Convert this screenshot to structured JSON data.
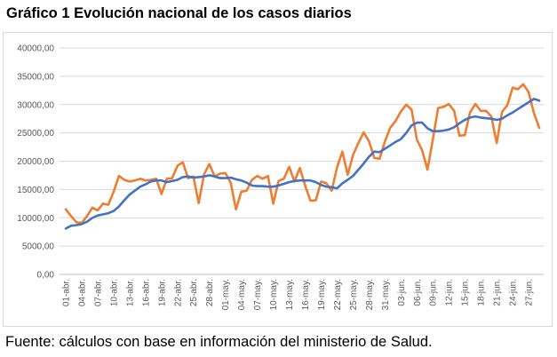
{
  "title": "Gráfico 1 Evolución nacional de los casos diarios",
  "source": "Fuente: cálculos con base en información del ministerio de Salud.",
  "chart_data": {
    "type": "line",
    "title": "Gráfico 1 Evolución nacional de los casos diarios",
    "xlabel": "",
    "ylabel": "",
    "ylim": [
      0,
      40000
    ],
    "y_ticks": [
      "0,00",
      "5000,00",
      "10000,00",
      "15000,00",
      "20000,00",
      "25000,00",
      "30000,00",
      "35000,00",
      "40000,00"
    ],
    "x_ticks": [
      "01-abr.",
      "04-abr.",
      "07-abr.",
      "10-abr.",
      "13-abr.",
      "16-abr.",
      "19-abr.",
      "22-abr.",
      "25-abr.",
      "28-abr.",
      "01-may.",
      "04-may.",
      "07-may.",
      "10-may.",
      "13-may.",
      "16-may.",
      "19-may.",
      "22-may.",
      "25-may.",
      "28-may.",
      "31-may.",
      "03-jun.",
      "06-jun.",
      "09-jun.",
      "12-jun.",
      "15-jun.",
      "18-jun.",
      "21-jun.",
      "24-jun.",
      "27-jun."
    ],
    "grid": true,
    "legend": "none",
    "series": [
      {
        "color": "#ED7D31",
        "values": [
          11500,
          10300,
          9200,
          9100,
          10300,
          11800,
          11300,
          12500,
          12300,
          14600,
          17400,
          16700,
          16400,
          16600,
          16900,
          16600,
          16700,
          16900,
          14200,
          16900,
          17000,
          19200,
          19800,
          17000,
          17300,
          12600,
          17700,
          19500,
          17300,
          17800,
          17900,
          16200,
          11500,
          14600,
          14800,
          16700,
          17400,
          16900,
          17400,
          12500,
          16500,
          16900,
          19000,
          16400,
          18800,
          15700,
          13000,
          13100,
          16400,
          16100,
          14800,
          18900,
          21700,
          17600,
          21100,
          23200,
          25100,
          23500,
          20600,
          20400,
          23500,
          25900,
          27100,
          28800,
          30000,
          29100,
          23800,
          21900,
          18500,
          23800,
          29400,
          29600,
          30100,
          28900,
          24500,
          24600,
          28600,
          30100,
          28900,
          28900,
          27900,
          23200,
          28700,
          29900,
          33000,
          32700,
          33600,
          32200,
          28500,
          25900
        ]
      },
      {
        "color": "#4472C4",
        "values": [
          8100,
          8600,
          8700,
          8900,
          9300,
          10000,
          10400,
          10600,
          10800,
          11200,
          12000,
          13100,
          14100,
          14800,
          15500,
          15900,
          16400,
          16600,
          16600,
          16300,
          16500,
          16700,
          17200,
          17300,
          17100,
          17200,
          17300,
          17500,
          17300,
          17000,
          17000,
          17100,
          16800,
          16600,
          16200,
          15700,
          15600,
          15600,
          15500,
          15500,
          15700,
          16000,
          16300,
          16500,
          16600,
          16600,
          16600,
          16300,
          15800,
          15500,
          15400,
          15200,
          16100,
          16700,
          17400,
          18500,
          19600,
          20800,
          21700,
          21600,
          22200,
          22800,
          23400,
          23900,
          25000,
          26300,
          26800,
          26800,
          25800,
          25300,
          25300,
          25400,
          25600,
          26000,
          26700,
          27300,
          27700,
          27900,
          27700,
          27600,
          27500,
          27300,
          27500,
          28100,
          28600,
          29200,
          29800,
          30400,
          31000,
          30700
        ]
      }
    ]
  }
}
